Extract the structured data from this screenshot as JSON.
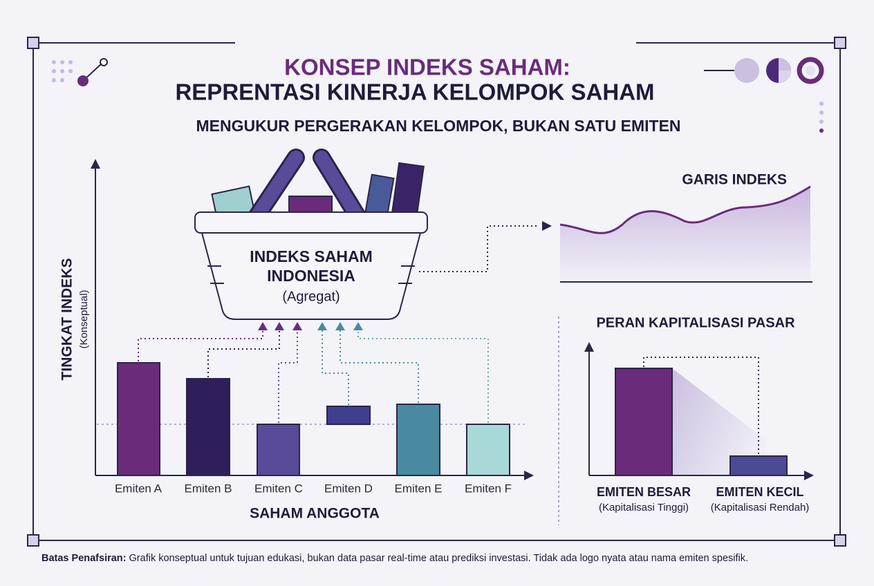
{
  "header": {
    "title_line1": "KONSEP INDEKS SAHAM:",
    "title_line2": "REPRENTASI KINERJA KELOMPOK SAHAM",
    "subtitle": "MENGUKUR PERGERAKAN KELOMPOK, BUKAN SATU EMITEN"
  },
  "basket": {
    "line1": "INDEKS SAHAM",
    "line2": "INDONESIA",
    "note": "(Agregat)"
  },
  "members_panel": {
    "y_axis_label": "TINGKAT INDEKS",
    "y_axis_note": "(Konseptual)",
    "x_axis_label": "SAHAM ANGGOTA",
    "members": [
      "Emiten A",
      "Emiten B",
      "Emiten C",
      "Emiten D",
      "Emiten E",
      "Emiten F"
    ]
  },
  "index_line_panel": {
    "title": "GARIS INDEKS"
  },
  "cap_panel": {
    "title": "PERAN KAPITALISASI PASAR",
    "big": {
      "label": "EMITEN BESAR",
      "note": "(Kapitalisasi Tinggi)"
    },
    "small": {
      "label": "EMITEN KECIL",
      "note": "(Kapitalisasi Rendah)"
    }
  },
  "footer": {
    "label": "Batas Penafsiran:",
    "text": "Grafik konseptual untuk tujuan edukasi, bukan data pasar real-time atau prediksi investasi. Tidak ada logo nyata atau nama emiten spesifik."
  }
}
